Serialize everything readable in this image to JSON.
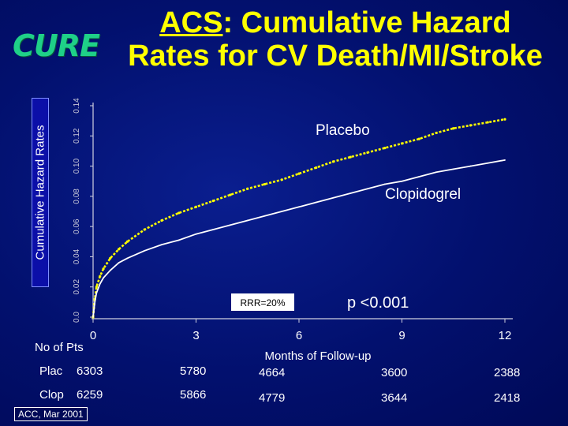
{
  "logo": "CURE",
  "title": {
    "acronym": "ACS",
    "line1_rest": ": Cumulative Hazard",
    "line2": "Rates for CV Death/MI/Stroke"
  },
  "reference": "ACC, Mar 2001",
  "colors": {
    "placebo": "#ffff00",
    "clopidogrel": "#ffffff",
    "title": "#ffff00",
    "background": "#02106e"
  },
  "chart_data": {
    "type": "line",
    "ylabel": "Cumulative Hazard Rates",
    "xlabel": "Months of Follow-up",
    "xlim": [
      0,
      12
    ],
    "ylim": [
      0,
      0.14
    ],
    "x_ticks": [
      "0",
      "3",
      "6",
      "9",
      "12"
    ],
    "y_ticks": [
      "0.0",
      "0.02",
      "0.04",
      "0.06",
      "0.08",
      "0.10",
      "0.12",
      "0.14"
    ],
    "series": [
      {
        "name": "Placebo",
        "x": [
          0,
          0.05,
          0.1,
          0.2,
          0.3,
          0.5,
          0.75,
          1,
          1.5,
          2,
          2.5,
          3,
          3.5,
          4,
          4.5,
          5,
          5.5,
          6,
          6.5,
          7,
          7.5,
          8,
          8.5,
          9,
          9.5,
          10,
          10.5,
          11,
          11.5,
          12
        ],
        "y": [
          0,
          0.012,
          0.02,
          0.027,
          0.032,
          0.039,
          0.045,
          0.05,
          0.058,
          0.064,
          0.069,
          0.073,
          0.077,
          0.081,
          0.085,
          0.088,
          0.091,
          0.095,
          0.099,
          0.103,
          0.106,
          0.109,
          0.112,
          0.115,
          0.118,
          0.122,
          0.125,
          0.127,
          0.129,
          0.131
        ]
      },
      {
        "name": "Clopidogrel",
        "x": [
          0,
          0.05,
          0.1,
          0.2,
          0.3,
          0.5,
          0.75,
          1,
          1.5,
          2,
          2.5,
          3,
          3.5,
          4,
          4.5,
          5,
          5.5,
          6,
          6.5,
          7,
          7.5,
          8,
          8.5,
          9,
          9.5,
          10,
          10.5,
          11,
          11.5,
          12
        ],
        "y": [
          0,
          0.01,
          0.016,
          0.022,
          0.026,
          0.031,
          0.036,
          0.039,
          0.044,
          0.048,
          0.051,
          0.055,
          0.058,
          0.061,
          0.064,
          0.067,
          0.07,
          0.073,
          0.076,
          0.079,
          0.082,
          0.085,
          0.088,
          0.09,
          0.093,
          0.096,
          0.098,
          0.1,
          0.102,
          0.104
        ]
      }
    ],
    "annotations": {
      "rrr": "RRR=20%",
      "p_value": "p <0.001"
    }
  },
  "table": {
    "header": "No of Pts",
    "rows": [
      {
        "label": "Plac",
        "values": [
          "6303",
          "5780",
          "4664",
          "3600",
          "2388"
        ]
      },
      {
        "label": "Clop",
        "values": [
          "6259",
          "5866",
          "4779",
          "3644",
          "2418"
        ]
      }
    ]
  }
}
